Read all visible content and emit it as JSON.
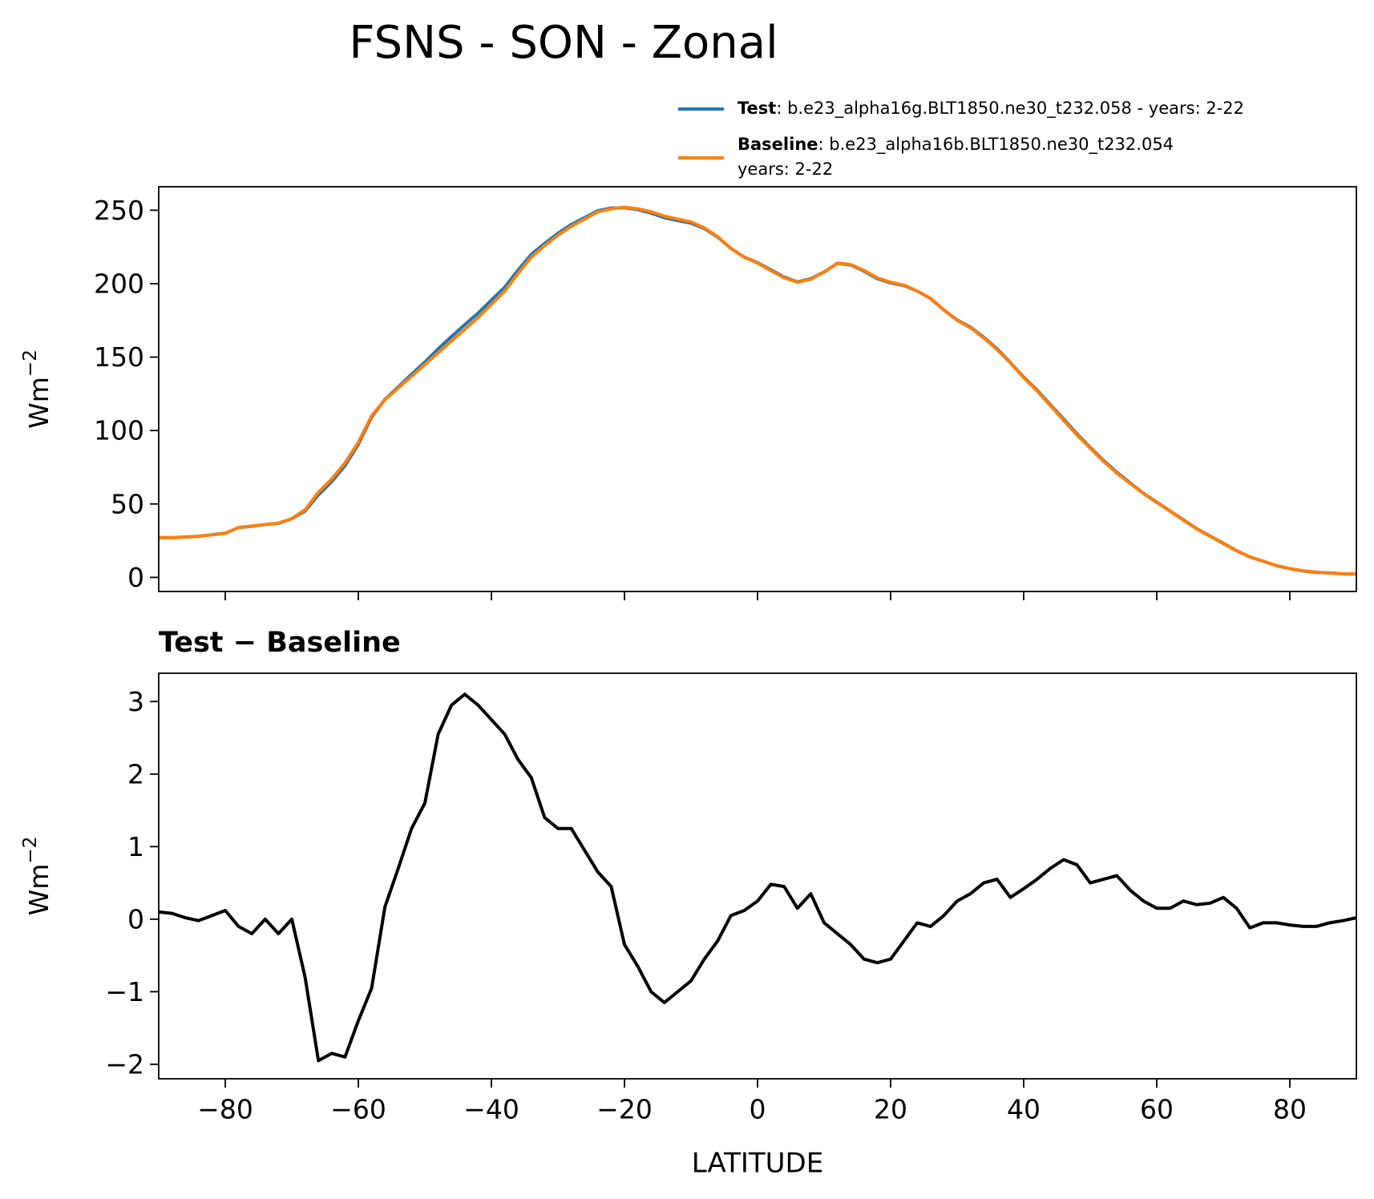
{
  "title": "FSNS - SON - Zonal",
  "chart_data": [
    {
      "type": "line",
      "ylabel": "Wm",
      "ylabel_sup": "−2",
      "xlim": [
        -90,
        90
      ],
      "ylim": [
        -9.6,
        266
      ],
      "xticks": [
        -80,
        -60,
        -40,
        -20,
        0,
        20,
        40,
        60,
        80
      ],
      "xtick_labels": false,
      "yticks": [
        0,
        50,
        100,
        150,
        200,
        250
      ],
      "legend": "upper right",
      "x": [
        -90,
        -88,
        -86,
        -84,
        -82,
        -80,
        -78,
        -76,
        -74,
        -72,
        -70,
        -68,
        -66,
        -64,
        -62,
        -60,
        -58,
        -56,
        -54,
        -52,
        -50,
        -48,
        -46,
        -44,
        -42,
        -40,
        -38,
        -36,
        -34,
        -32,
        -30,
        -28,
        -26,
        -24,
        -22,
        -20,
        -18,
        -16,
        -14,
        -12,
        -10,
        -8,
        -6,
        -4,
        -2,
        0,
        2,
        4,
        6,
        8,
        10,
        12,
        14,
        16,
        18,
        20,
        22,
        24,
        26,
        28,
        30,
        32,
        34,
        36,
        38,
        40,
        42,
        44,
        46,
        48,
        50,
        52,
        54,
        56,
        58,
        60,
        62,
        64,
        66,
        68,
        70,
        72,
        74,
        76,
        78,
        80,
        82,
        84,
        86,
        88,
        90
      ],
      "series": [
        {
          "name": "Test",
          "description": [
            ": b.e23_alpha16g.BLT1850.ne30_t232.058 - years: 2-22"
          ],
          "color": "#1f77b4",
          "values": [
            27.1,
            27.1,
            27.5,
            28.0,
            29.1,
            30.1,
            33.9,
            34.8,
            36,
            36.8,
            40,
            45.2,
            56.1,
            65.2,
            76.1,
            90.6,
            109.1,
            121.2,
            129.7,
            138.3,
            146.6,
            155.6,
            164,
            172.1,
            180,
            188.8,
            197.6,
            209.2,
            220,
            227.4,
            234.3,
            240.3,
            245,
            249.7,
            251.5,
            251.7,
            250.4,
            248,
            244.9,
            243,
            241.2,
            237.5,
            231.7,
            224,
            218.1,
            214.3,
            209.5,
            204.5,
            201.2,
            203.4,
            208,
            213.8,
            212.7,
            208.5,
            203.4,
            200.5,
            198.7,
            195,
            189.9,
            182.1,
            175.3,
            170.4,
            163.5,
            155.6,
            146.3,
            136.4,
            127.6,
            117.7,
            107.8,
            97.8,
            88.5,
            79.6,
            71.6,
            64.4,
            57.3,
            51.2,
            45.2,
            39.3,
            33.2,
            28.2,
            23.3,
            18.2,
            13.9,
            11,
            8,
            5.9,
            4.4,
            3.4,
            3,
            2.5,
            2.3
          ]
        },
        {
          "name": "Baseline",
          "description": [
            ": b.e23_alpha16b.BLT1850.ne30_t232.054",
            "years: 2-22"
          ],
          "color": "#ff7f0e",
          "values": [
            27,
            27,
            27.5,
            28,
            29,
            30,
            34,
            35,
            36,
            37,
            40,
            46,
            58,
            67,
            78,
            92,
            110,
            121,
            129,
            137,
            145,
            153,
            161,
            169,
            177,
            186,
            195,
            207,
            218,
            226,
            233,
            239,
            244,
            249,
            251,
            252,
            251,
            249,
            246,
            244,
            242,
            238,
            232,
            224,
            218,
            214,
            209,
            204,
            201,
            203,
            208,
            214,
            213,
            209,
            204,
            201,
            199,
            195,
            190,
            182,
            175,
            170,
            163,
            155,
            146,
            136,
            127,
            117,
            107,
            97,
            88,
            79,
            71,
            64,
            57,
            51,
            45,
            39,
            33,
            28,
            23,
            18,
            14,
            11,
            8,
            6,
            4.5,
            3.5,
            3,
            2.5,
            2.3
          ]
        }
      ]
    },
    {
      "type": "line",
      "title": "Test − Baseline",
      "xlabel": "LATITUDE",
      "ylabel": "Wm",
      "ylabel_sup": "−2",
      "xlim": [
        -90,
        90
      ],
      "ylim": [
        -2.2,
        3.39
      ],
      "xticks": [
        {
          "value": -80,
          "label": "−80"
        },
        {
          "value": -60,
          "label": "−60"
        },
        {
          "value": -40,
          "label": "−40"
        },
        {
          "value": -20,
          "label": "−20"
        },
        0,
        20,
        40,
        60,
        80
      ],
      "xtick_labels": true,
      "yticks": [
        {
          "value": -2,
          "label": "−2"
        },
        {
          "value": -1,
          "label": "−1"
        },
        0,
        1,
        2,
        3
      ],
      "x": [
        -90,
        -88,
        -86,
        -84,
        -82,
        -80,
        -78,
        -76,
        -74,
        -72,
        -70,
        -68,
        -66,
        -64,
        -62,
        -60,
        -58,
        -56,
        -54,
        -52,
        -50,
        -48,
        -46,
        -44,
        -42,
        -40,
        -38,
        -36,
        -34,
        -32,
        -30,
        -28,
        -26,
        -24,
        -22,
        -20,
        -18,
        -16,
        -14,
        -12,
        -10,
        -8,
        -6,
        -4,
        -2,
        0,
        2,
        4,
        6,
        8,
        10,
        12,
        14,
        16,
        18,
        20,
        22,
        24,
        26,
        28,
        30,
        32,
        34,
        36,
        38,
        40,
        42,
        44,
        46,
        48,
        50,
        52,
        54,
        56,
        58,
        60,
        62,
        64,
        66,
        68,
        70,
        72,
        74,
        76,
        78,
        80,
        82,
        84,
        86,
        88,
        90
      ],
      "series": [
        {
          "color": "#000000",
          "values": [
            0.1,
            0.08,
            0.02,
            -0.02,
            0.05,
            0.12,
            -0.1,
            -0.2,
            0,
            -0.2,
            0,
            -0.8,
            -1.95,
            -1.85,
            -1.9,
            -1.4,
            -0.95,
            0.17,
            0.7,
            1.25,
            1.6,
            2.55,
            2.95,
            3.1,
            2.95,
            2.75,
            2.55,
            2.2,
            1.95,
            1.4,
            1.25,
            1.25,
            0.95,
            0.65,
            0.45,
            -0.35,
            -0.65,
            -1,
            -1.15,
            -1,
            -0.85,
            -0.55,
            -0.3,
            0.05,
            0.12,
            0.25,
            0.48,
            0.45,
            0.15,
            0.35,
            -0.05,
            -0.2,
            -0.35,
            -0.55,
            -0.6,
            -0.55,
            -0.3,
            -0.05,
            -0.1,
            0.05,
            0.25,
            0.35,
            0.5,
            0.55,
            0.3,
            0.42,
            0.55,
            0.7,
            0.82,
            0.75,
            0.5,
            0.55,
            0.6,
            0.4,
            0.25,
            0.15,
            0.15,
            0.25,
            0.2,
            0.22,
            0.3,
            0.15,
            -0.12,
            -0.05,
            -0.05,
            -0.08,
            -0.1,
            -0.1,
            -0.05,
            -0.02,
            0.02
          ]
        }
      ]
    }
  ]
}
